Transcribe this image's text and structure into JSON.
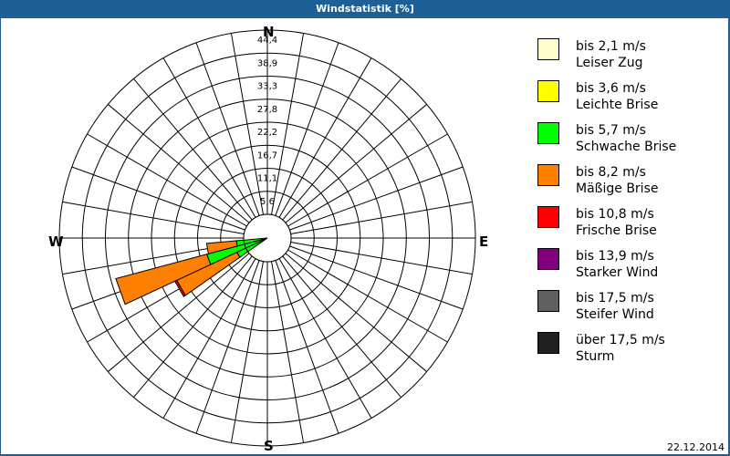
{
  "window": {
    "title": "Windstatistik [%]"
  },
  "footer": {
    "date": "22.12.2014"
  },
  "compass": {
    "N": "N",
    "E": "E",
    "S": "S",
    "W": "W"
  },
  "legend": [
    {
      "range": "bis 2,1 m/s",
      "name": "Leiser Zug",
      "color": "#ffffcc"
    },
    {
      "range": "bis 3,6 m/s",
      "name": "Leichte Brise",
      "color": "#ffff00"
    },
    {
      "range": "bis 5,7 m/s",
      "name": "Schwache Brise",
      "color": "#00ff00"
    },
    {
      "range": "bis 8,2 m/s",
      "name": "Mäßige Brise",
      "color": "#ff8000"
    },
    {
      "range": "bis 10,8 m/s",
      "name": "Frische Brise",
      "color": "#ff0000"
    },
    {
      "range": "bis 13,9 m/s",
      "name": "Starker Wind",
      "color": "#800080"
    },
    {
      "range": "bis 17,5 m/s",
      "name": "Steifer Wind",
      "color": "#606060"
    },
    {
      "range": "über 17,5 m/s",
      "name": "Sturm",
      "color": "#202020"
    }
  ],
  "chart_data": {
    "type": "wind-rose",
    "title": "Windstatistik [%]",
    "ring_labels": [
      "5,6",
      "11,1",
      "16,7",
      "22,2",
      "27,8",
      "33,3",
      "38,9",
      "44,4"
    ],
    "rmax": 44.4,
    "sector_width_deg": 10,
    "series_order": [
      "Leiser Zug",
      "Leichte Brise",
      "Schwache Brise",
      "Mäßige Brise",
      "Frische Brise",
      "Starker Wind",
      "Steifer Wind",
      "Sturm"
    ],
    "sectors": [
      {
        "bearing": 240,
        "values": [
          0.3,
          0.3,
          7.5,
          16.0,
          0.5,
          0,
          0,
          0
        ]
      },
      {
        "bearing": 250,
        "values": [
          0.3,
          0.3,
          14.5,
          22.7,
          0,
          0,
          0,
          0
        ]
      },
      {
        "bearing": 260,
        "values": [
          0.3,
          0.3,
          6.9,
          7.2,
          0,
          0,
          0,
          0
        ]
      }
    ]
  }
}
